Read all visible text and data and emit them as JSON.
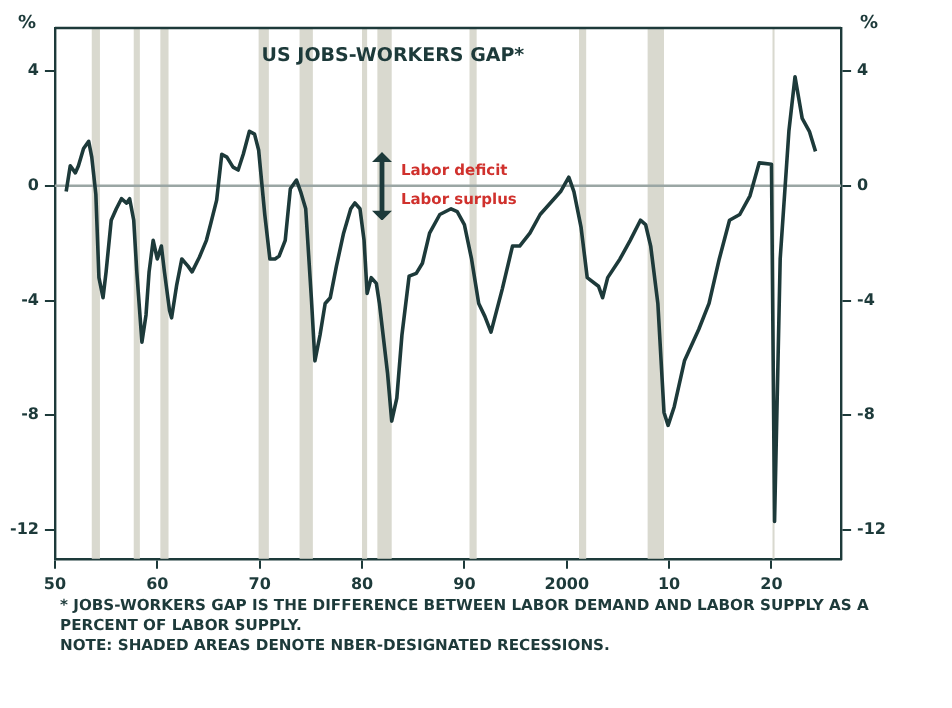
{
  "chart_data": {
    "type": "line",
    "title": "US JOBS-WORKERS GAP*",
    "ylabel": "%",
    "y2label": "%",
    "x": [
      1951.1,
      1951.5,
      1952.0,
      1952.3,
      1952.8,
      1953.3,
      1953.6,
      1954.0,
      1954.3,
      1954.7,
      1955.0,
      1955.5,
      1956.0,
      1956.5,
      1957.0,
      1957.3,
      1957.7,
      1958.0,
      1958.5,
      1958.9,
      1959.2,
      1959.6,
      1960.0,
      1960.4,
      1960.7,
      1961.2,
      1961.4,
      1961.9,
      1962.4,
      1963.0,
      1963.4,
      1964.1,
      1964.8,
      1965.2,
      1965.8,
      1966.3,
      1966.8,
      1967.4,
      1967.9,
      1968.4,
      1969.0,
      1969.5,
      1969.9,
      1970.5,
      1971.0,
      1971.5,
      1971.9,
      1972.5,
      1973.0,
      1973.6,
      1974.0,
      1974.5,
      1975.05,
      1975.4,
      1975.9,
      1976.4,
      1976.9,
      1977.5,
      1978.2,
      1978.9,
      1979.3,
      1979.8,
      1980.2,
      1980.5,
      1980.9,
      1981.4,
      1981.7,
      1982.5,
      1982.9,
      1983.4,
      1983.9,
      1984.6,
      1985.3,
      1985.9,
      1986.6,
      1987.6,
      1988.7,
      1989.3,
      1990.0,
      1990.7,
      1991.4,
      1992.0,
      1992.6,
      1993.7,
      1994.7,
      1995.4,
      1996.4,
      1997.4,
      1998.4,
      1999.4,
      2000.2,
      2000.7,
      2001.4,
      2002.0,
      2003.1,
      2003.5,
      2004.0,
      2005.2,
      2006.2,
      2007.2,
      2007.7,
      2008.2,
      2008.9,
      2009.5,
      2009.9,
      2010.5,
      2011.5,
      2012.9,
      2013.9,
      2014.9,
      2015.9,
      2016.9,
      2017.9,
      2018.8,
      2020.0,
      2020.3,
      2020.85,
      2021.7,
      2022.3,
      2023.0,
      2023.7,
      2024.3
    ],
    "series": [
      {
        "color": "#1d3a3a",
        "values": [
          -0.2,
          0.7,
          0.45,
          0.7,
          1.3,
          1.55,
          1.0,
          -0.3,
          -3.2,
          -3.9,
          -3.0,
          -1.2,
          -0.8,
          -0.45,
          -0.6,
          -0.45,
          -1.2,
          -3.0,
          -5.45,
          -4.5,
          -3.0,
          -1.9,
          -2.55,
          -2.1,
          -3.0,
          -4.35,
          -4.6,
          -3.45,
          -2.55,
          -2.8,
          -3.0,
          -2.5,
          -1.9,
          -1.35,
          -0.5,
          1.1,
          1.0,
          0.65,
          0.55,
          1.1,
          1.9,
          1.8,
          1.25,
          -1.0,
          -2.55,
          -2.55,
          -2.45,
          -1.9,
          -0.1,
          0.2,
          -0.2,
          -0.8,
          -3.9,
          -6.1,
          -5.2,
          -4.1,
          -3.9,
          -2.8,
          -1.65,
          -0.8,
          -0.6,
          -0.8,
          -1.9,
          -3.75,
          -3.2,
          -3.4,
          -4.1,
          -6.55,
          -8.2,
          -7.4,
          -5.2,
          -3.15,
          -3.05,
          -2.7,
          -1.65,
          -1.0,
          -0.8,
          -0.9,
          -1.35,
          -2.55,
          -4.1,
          -4.55,
          -5.1,
          -3.6,
          -2.1,
          -2.1,
          -1.65,
          -1.0,
          -0.6,
          -0.2,
          0.3,
          -0.2,
          -1.45,
          -3.2,
          -3.5,
          -3.9,
          -3.2,
          -2.55,
          -1.9,
          -1.2,
          -1.35,
          -2.1,
          -4.1,
          -7.9,
          -8.35,
          -7.7,
          -6.1,
          -5.0,
          -4.1,
          -2.55,
          -1.2,
          -1.0,
          -0.35,
          0.8,
          0.75,
          -11.7,
          -2.55,
          1.9,
          3.8,
          2.35,
          1.9,
          1.2
        ]
      }
    ],
    "xlim": [
      1950,
      2026.8
    ],
    "xticks": [
      {
        "value": 1950,
        "label": "50"
      },
      {
        "value": 1960,
        "label": "60"
      },
      {
        "value": 1970,
        "label": "70"
      },
      {
        "value": 1980,
        "label": "80"
      },
      {
        "value": 1990,
        "label": "90"
      },
      2000,
      {
        "value": 2010,
        "label": "10"
      },
      {
        "value": 2020,
        "label": "20"
      }
    ],
    "ylim": [
      -13,
      5.5
    ],
    "yticks": [
      -12,
      -8,
      -4,
      0,
      4
    ],
    "y2lim": [
      -13,
      5.5
    ],
    "y2ticks": [
      -12,
      -8,
      -4,
      0,
      4
    ],
    "ref_lines": [
      {
        "axis": "y",
        "value": 0,
        "color": "#9aa6a4"
      }
    ],
    "bands": [
      {
        "axis": "x",
        "from": 1953.6,
        "to": 1954.4,
        "color": "#d9d9cf"
      },
      {
        "axis": "x",
        "from": 1957.7,
        "to": 1958.3,
        "color": "#d9d9cf"
      },
      {
        "axis": "x",
        "from": 1960.3,
        "to": 1961.1,
        "color": "#d9d9cf"
      },
      {
        "axis": "x",
        "from": 1969.9,
        "to": 1970.9,
        "color": "#d9d9cf"
      },
      {
        "axis": "x",
        "from": 1973.9,
        "to": 1975.2,
        "color": "#d9d9cf"
      },
      {
        "axis": "x",
        "from": 1980.0,
        "to": 1980.5,
        "color": "#d9d9cf"
      },
      {
        "axis": "x",
        "from": 1981.5,
        "to": 1982.9,
        "color": "#d9d9cf"
      },
      {
        "axis": "x",
        "from": 1990.5,
        "to": 1991.2,
        "color": "#d9d9cf"
      },
      {
        "axis": "x",
        "from": 2001.2,
        "to": 2001.9,
        "color": "#d9d9cf"
      },
      {
        "axis": "x",
        "from": 2007.9,
        "to": 2009.5,
        "color": "#d9d9cf"
      },
      {
        "axis": "x",
        "from": 2020.1,
        "to": 2020.3,
        "color": "#d9d9cf"
      }
    ],
    "annotations": [
      {
        "text": "Labor deficit",
        "x": 1983.8,
        "y": 0.5
      },
      {
        "text": "Labor surplus",
        "x": 1983.8,
        "y": -0.5
      },
      "* JOBS-WORKERS GAP IS THE DIFFERENCE BETWEEN LABOR DEMAND AND LABOR SUPPLY AS A PERCENT OF LABOR SUPPLY.",
      "NOTE: SHADED AREAS DENOTE NBER-DESIGNATED RECESSIONS."
    ],
    "legend": false,
    "grid": false,
    "marker": "none",
    "line_style": "solid"
  }
}
